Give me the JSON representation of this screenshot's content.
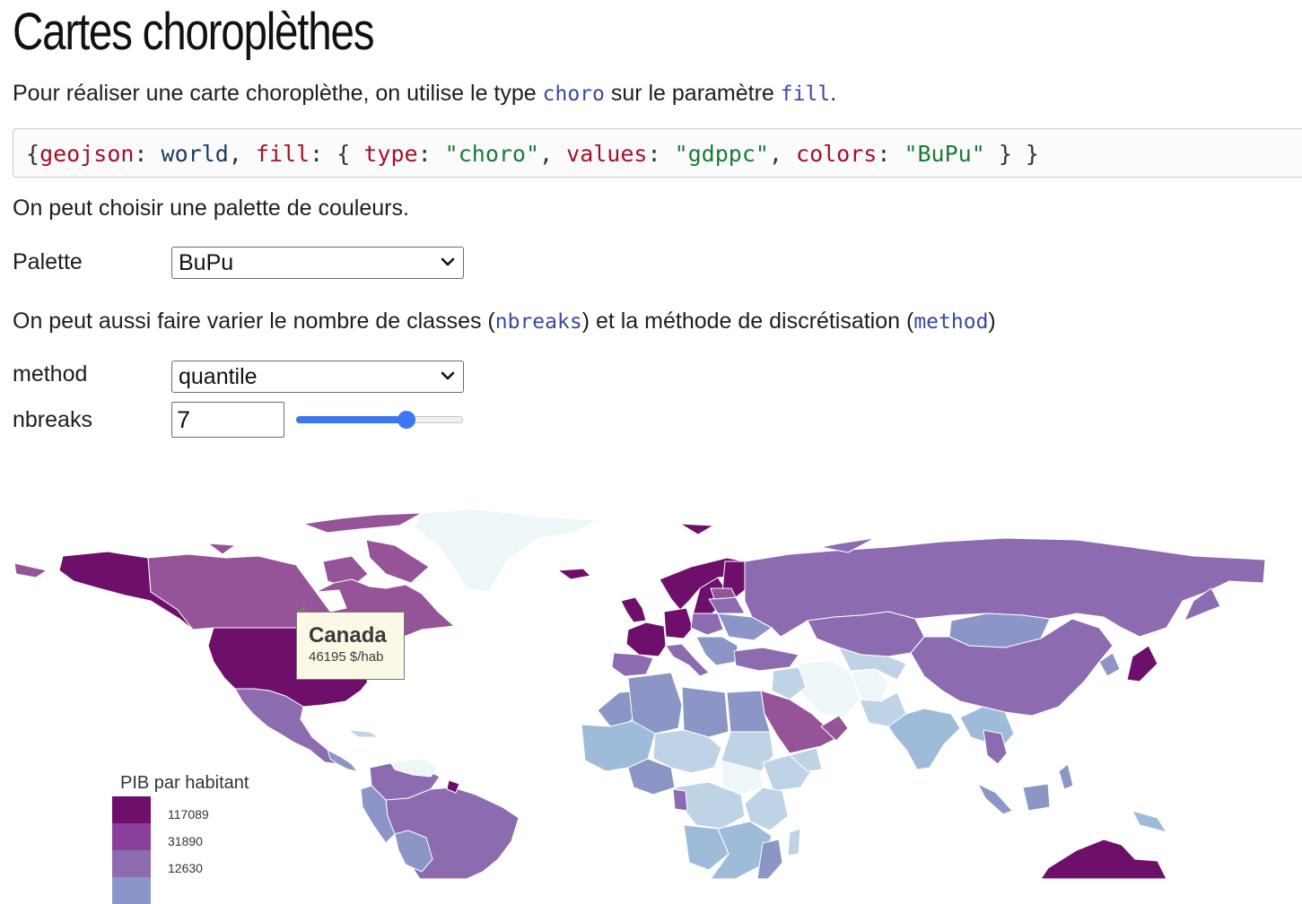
{
  "page": {
    "title": "Cartes choroplèthes",
    "intro": {
      "before": "Pour réaliser une carte choroplèthe, on utilise le type ",
      "code1": "choro",
      "middle": " sur le paramètre ",
      "code2": "fill",
      "after": "."
    },
    "code_snippet": {
      "t1": "{",
      "t2": "geojson",
      "t3": ": ",
      "t4": "world",
      "t5": ", ",
      "t6": "fill",
      "t7": ": { ",
      "t8": "type",
      "t9": ": ",
      "t10": "\"choro\"",
      "t11": ", ",
      "t12": "values",
      "t13": ": ",
      "t14": "\"gdppc\"",
      "t15": ", ",
      "t16": "colors",
      "t17": ": ",
      "t18": "\"BuPu\"",
      "t19": " } }"
    },
    "palette_text": "On peut choisir une palette de couleurs.",
    "breaks_text": {
      "before": "On peut aussi faire varier le nombre de classes (",
      "code1": "nbreaks",
      "middle": ") et la méthode de discrétisation (",
      "code2": "method",
      "after": ")"
    }
  },
  "controls": {
    "palette": {
      "label": "Palette",
      "value": "BuPu"
    },
    "method": {
      "label": "method",
      "value": "quantile"
    },
    "nbreaks": {
      "label": "nbreaks",
      "value": "7",
      "slider_fraction": 0.66
    }
  },
  "icons": {
    "select_chevron": "chevron-down-icon"
  },
  "map": {
    "tooltip": {
      "name": "Canada",
      "value": "46195 $/hab"
    },
    "legend": {
      "title": "PIB par habitant",
      "items": [
        {
          "value": "117089",
          "color": "#6e0f6b"
        },
        {
          "value": "31890",
          "color": "#8a3f9c"
        },
        {
          "value": "12630",
          "color": "#8c6bb1"
        },
        {
          "value": "",
          "color": "#8c96c6"
        }
      ]
    },
    "colors": {
      "c1": "#6e0f6b",
      "c2": "#955398",
      "c3": "#8c6bb1",
      "c4": "#8c96c6",
      "c5": "#9ebcda",
      "c6": "#bfd3e6",
      "c7": "#edf6f9"
    }
  }
}
